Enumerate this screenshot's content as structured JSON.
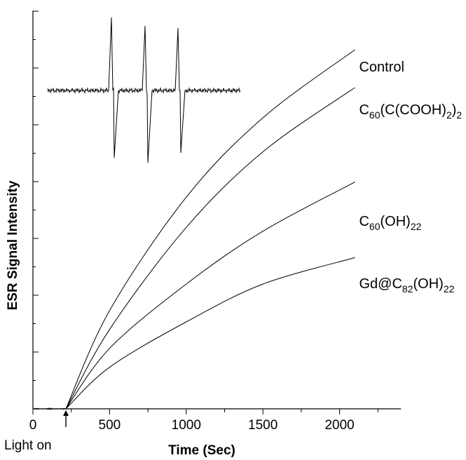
{
  "chart_data": {
    "type": "line",
    "title": "",
    "xlabel": "Time (Sec)",
    "ylabel": "ESR Signal Intensity",
    "xlim": [
      0,
      2400
    ],
    "ylim": [
      0,
      100
    ],
    "x_ticks": [
      "0",
      "500",
      "1000",
      "1500",
      "2000"
    ],
    "y_tick_labels_shown": false,
    "grid": false,
    "legend": "labels at line ends (right)",
    "annotation": {
      "text": "Light on",
      "x": 215,
      "marker": "arrow-up"
    },
    "inset": "ESR spectrum (three-line signal) shown in upper-left",
    "series": [
      {
        "name": "Control",
        "label": {
          "base": "Control",
          "parts": []
        },
        "x": [
          215,
          500,
          1000,
          1500,
          2100
        ],
        "y": [
          0,
          26,
          56,
          77,
          95
        ]
      },
      {
        "name": "C60(C(COOH)2)2",
        "label": {
          "base": "C",
          "parts": [
            {
              "t": "60",
              "sub": true
            },
            {
              "t": "(C(COOH)",
              "sub": false
            },
            {
              "t": "2",
              "sub": true
            },
            {
              "t": ")",
              "sub": false
            },
            {
              "t": "2",
              "sub": true
            }
          ]
        },
        "x": [
          215,
          500,
          1000,
          1500,
          2100
        ],
        "y": [
          0,
          21,
          48,
          68,
          85
        ]
      },
      {
        "name": "C60(OH)22",
        "label": {
          "base": "C",
          "parts": [
            {
              "t": "60",
              "sub": true
            },
            {
              "t": "(OH)",
              "sub": false
            },
            {
              "t": "22",
              "sub": true
            }
          ]
        },
        "x": [
          215,
          500,
          1000,
          1500,
          2100
        ],
        "y": [
          0,
          16,
          33,
          47,
          60
        ]
      },
      {
        "name": "Gd@C82(OH)22",
        "label": {
          "base": "Gd@C",
          "parts": [
            {
              "t": "82",
              "sub": true
            },
            {
              "t": "(OH)",
              "sub": false
            },
            {
              "t": "22",
              "sub": true
            }
          ]
        },
        "x": [
          215,
          500,
          1000,
          1500,
          2100
        ],
        "y": [
          0,
          11,
          23,
          33,
          40
        ]
      }
    ],
    "baseline": {
      "x": [
        0,
        215
      ],
      "y": [
        0,
        0
      ]
    }
  }
}
